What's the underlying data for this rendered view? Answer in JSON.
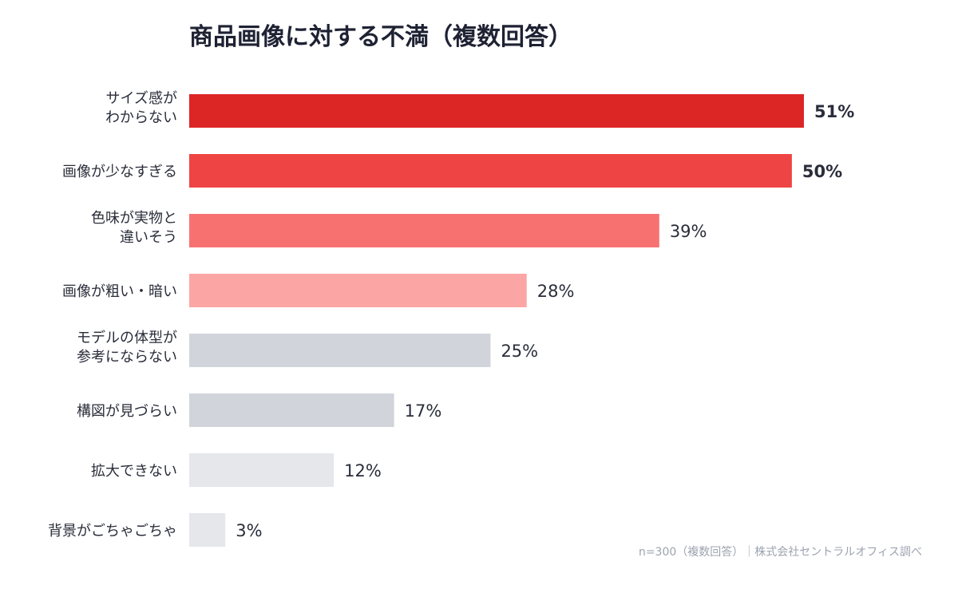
{
  "chart_data": {
    "type": "bar",
    "orientation": "horizontal",
    "title": "商品画像に対する不満（複数回答）",
    "categories": [
      [
        "サイズ感が",
        "わからない"
      ],
      [
        "画像が少なすぎる"
      ],
      [
        "色味が実物と",
        "違いそう"
      ],
      [
        "画像が粗い・暗い"
      ],
      [
        "モデルの体型が",
        "参考にならない"
      ],
      [
        "構図が見づらい"
      ],
      [
        "拡大できない"
      ],
      [
        "背景がごちゃごちゃ"
      ]
    ],
    "values": [
      51,
      50,
      39,
      28,
      25,
      17,
      12,
      3
    ],
    "value_labels": [
      "51%",
      "50%",
      "39%",
      "28%",
      "25%",
      "17%",
      "12%",
      "3%"
    ],
    "bar_colors": [
      "#dc2626",
      "#ef4444",
      "#f87171",
      "#fca5a5",
      "#d1d5db",
      "#d1d5db",
      "#e5e7eb",
      "#e5e7eb"
    ],
    "highlight_label_color": "#dc2626",
    "highlighted": [
      true,
      true,
      false,
      false,
      false,
      false,
      false,
      false
    ],
    "xlim": [
      0,
      51
    ],
    "grid": false,
    "legend": "none",
    "footnote": "n=300（複数回答）｜株式会社セントラルオフィス調べ"
  }
}
